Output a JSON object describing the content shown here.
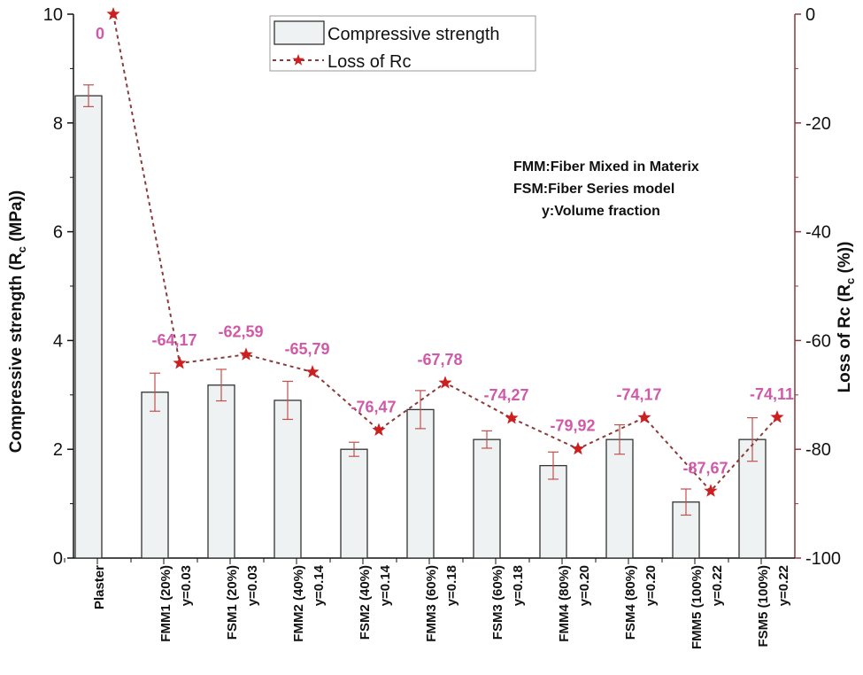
{
  "chart_data": {
    "type": "bar+line",
    "categories": [
      "Plaster",
      "FMM1 (20%)",
      "FSM1 (20%)",
      "FMM2 (40%)",
      "FSM2 (40%)",
      "FMM3 (60%)",
      "FSM3 (60%)",
      "FMM4 (80%)",
      "FSM4 (80%)",
      "FMM5 (100%)",
      "FSM5 (100%)"
    ],
    "category_sublabels": [
      "",
      "y=0.03",
      "y=0.03",
      "y=0.14",
      "y=0.14",
      "y=0.18",
      "y=0.18",
      "y=0.20",
      "y=0.20",
      "y=0.22",
      "y=0.22"
    ],
    "series": [
      {
        "name": "Compressive strength",
        "type": "bar",
        "axis": "left",
        "values": [
          8.5,
          3.05,
          3.18,
          2.9,
          2.0,
          2.73,
          2.18,
          1.7,
          2.18,
          1.03,
          2.18
        ],
        "error": [
          0.2,
          0.35,
          0.29,
          0.35,
          0.13,
          0.35,
          0.16,
          0.25,
          0.27,
          0.24,
          0.4
        ],
        "fill": "#eef2f2",
        "stroke": "#333333",
        "error_color": "#c0504d"
      },
      {
        "name": "Loss  of  Rc",
        "type": "line",
        "axis": "right",
        "values": [
          0,
          -64.17,
          -62.59,
          -65.79,
          -76.47,
          -67.78,
          -74.27,
          -79.92,
          -74.17,
          -87.67,
          -74.11
        ],
        "labels": [
          "0",
          "-64,17",
          "-62,59",
          "-65,79",
          "-76,47",
          "-67,78",
          "-74,27",
          "-79,92",
          "-74,17",
          "-87,67",
          "-74,11"
        ],
        "color": "#8b3a3a",
        "marker_color": "#cc2020",
        "label_color": "#d05aa8",
        "marker": "star",
        "linestyle": "dashed"
      }
    ],
    "ylabel": "Compressive strength (R_c (MPa))",
    "ylabel_parts": {
      "main": "Compressive strength (R",
      "sub": "c",
      "end": " (MPa))"
    },
    "y2label_parts": {
      "main": "Loss   of  Rc (R",
      "sub": "c",
      "end": " (%))"
    },
    "ylim": [
      0,
      10
    ],
    "yticks": [
      0,
      2,
      4,
      6,
      8,
      10
    ],
    "y2lim": [
      -100,
      0
    ],
    "y2ticks": [
      0,
      -20,
      -40,
      -60,
      -80,
      -100
    ],
    "y2_color": "#8b3a3a",
    "legend_placement": "top-center",
    "annotations": [
      "FMM:Fiber Mixed in Materix",
      "FSM:Fiber Series model",
      "y:Volume fraction"
    ],
    "grid": false
  }
}
